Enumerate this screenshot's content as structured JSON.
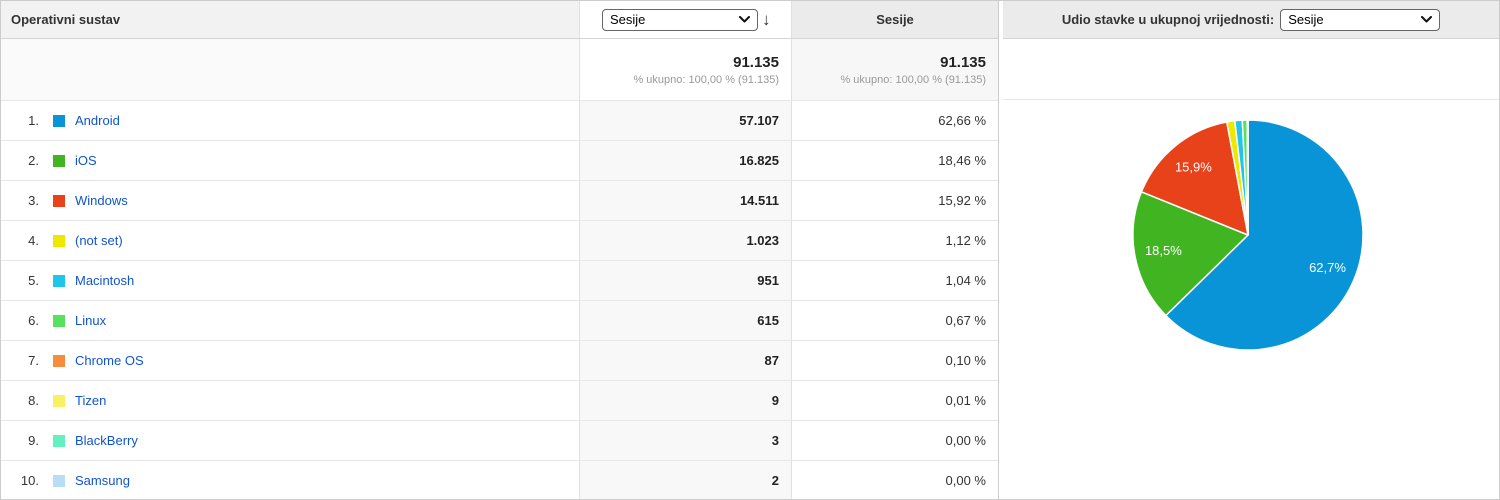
{
  "table": {
    "dimension_header": "Operativni sustav",
    "metric_selector_value": "Sesije",
    "sort_icon": "↓",
    "metric_column_header": "Sesije",
    "totals": {
      "primary": {
        "value": "91.135",
        "subtext": "% ukupno: 100,00 % (91.135)"
      },
      "secondary": {
        "value": "91.135",
        "subtext": "% ukupno: 100,00 % (91.135)"
      }
    },
    "rows": [
      {
        "rank": "1.",
        "label": "Android",
        "sessions": "57.107",
        "percent": "62,66 %"
      },
      {
        "rank": "2.",
        "label": "iOS",
        "sessions": "16.825",
        "percent": "18,46 %"
      },
      {
        "rank": "3.",
        "label": "Windows",
        "sessions": "14.511",
        "percent": "15,92 %"
      },
      {
        "rank": "4.",
        "label": "(not set)",
        "sessions": "1.023",
        "percent": "1,12 %"
      },
      {
        "rank": "5.",
        "label": "Macintosh",
        "sessions": "951",
        "percent": "1,04 %"
      },
      {
        "rank": "6.",
        "label": "Linux",
        "sessions": "615",
        "percent": "0,67 %"
      },
      {
        "rank": "7.",
        "label": "Chrome OS",
        "sessions": "87",
        "percent": "0,10 %"
      },
      {
        "rank": "8.",
        "label": "Tizen",
        "sessions": "9",
        "percent": "0,01 %"
      },
      {
        "rank": "9.",
        "label": "BlackBerry",
        "sessions": "3",
        "percent": "0,00 %"
      },
      {
        "rank": "10.",
        "label": "Samsung",
        "sessions": "2",
        "percent": "0,00 %"
      }
    ]
  },
  "chart_panel": {
    "title_label": "Udio stavke u ukupnoj vrijednosti:",
    "selector_value": "Sesije"
  },
  "chart_data": {
    "type": "pie",
    "title": "Udio stavke u ukupnoj vrijednosti: Sesije",
    "categories": [
      "Android",
      "iOS",
      "Windows",
      "(not set)",
      "Macintosh",
      "Linux",
      "Chrome OS",
      "Tizen",
      "BlackBerry",
      "Samsung"
    ],
    "values": [
      57107,
      16825,
      14511,
      1023,
      951,
      615,
      87,
      9,
      3,
      2
    ],
    "total": 91135,
    "percent_of_total": [
      62.66,
      18.46,
      15.92,
      1.12,
      1.04,
      0.67,
      0.1,
      0.01,
      0.0,
      0.0
    ],
    "visible_slice_labels": [
      "62,7%",
      "18,5%",
      "15,9%"
    ],
    "colors": [
      "#0a94d8",
      "#41b521",
      "#e8421b",
      "#ece800",
      "#20c6ea",
      "#57e15f",
      "#f68c3d",
      "#f7f163",
      "#63f2bf",
      "#b9def4"
    ],
    "start_angle_deg": 0,
    "direction": "clockwise",
    "label_min_share": 0.05,
    "legend_position": "table-rows",
    "link_color": "#15c"
  }
}
